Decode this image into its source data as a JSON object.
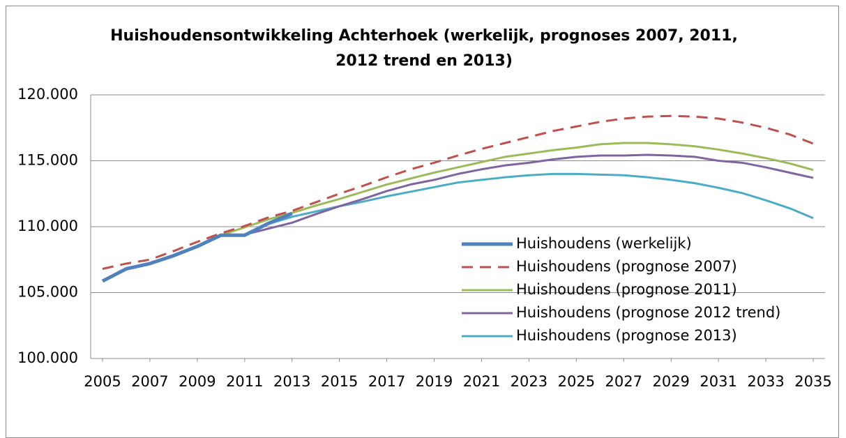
{
  "chart_data": {
    "type": "line",
    "title": "Huishoudensontwikkeling Achterhoek (werkelijk, prognoses 2007, 2011, 2012 trend en 2013)",
    "x": [
      2005,
      2006,
      2007,
      2008,
      2009,
      2010,
      2011,
      2012,
      2013,
      2014,
      2015,
      2016,
      2017,
      2018,
      2019,
      2020,
      2021,
      2022,
      2023,
      2024,
      2025,
      2026,
      2027,
      2028,
      2029,
      2030,
      2031,
      2032,
      2033,
      2034,
      2035
    ],
    "xlim": [
      2004.5,
      2035.5
    ],
    "xticks": [
      2005,
      2007,
      2009,
      2011,
      2013,
      2015,
      2017,
      2019,
      2021,
      2023,
      2025,
      2027,
      2029,
      2031,
      2033,
      2035
    ],
    "ylim": [
      100000,
      120000
    ],
    "yticks": [
      {
        "value": 100000,
        "label": "100.000"
      },
      {
        "value": 105000,
        "label": "105.000"
      },
      {
        "value": 110000,
        "label": "110.000"
      },
      {
        "value": 115000,
        "label": "115.000"
      },
      {
        "value": 120000,
        "label": "120.000"
      }
    ],
    "grid": true,
    "series": [
      {
        "name": "Huishoudens (werkelijk)",
        "color": "#4f81bd",
        "linewidth": 5,
        "dashed": false,
        "values": [
          105870,
          106800,
          107200,
          107800,
          108500,
          109350,
          109350,
          110250,
          111000,
          null,
          null,
          null,
          null,
          null,
          null,
          null,
          null,
          null,
          null,
          null,
          null,
          null,
          null,
          null,
          null,
          null,
          null,
          null,
          null,
          null,
          null
        ]
      },
      {
        "name": "Huishoudens (prognose 2007)",
        "color": "#c0504d",
        "linewidth": 3,
        "dashed": true,
        "values": [
          106800,
          107200,
          107500,
          108150,
          108850,
          109500,
          110050,
          110700,
          111200,
          111850,
          112500,
          113100,
          113750,
          114350,
          114850,
          115400,
          115900,
          116350,
          116800,
          117250,
          117600,
          117950,
          118200,
          118350,
          118400,
          118350,
          118200,
          117900,
          117500,
          117000,
          116300
        ]
      },
      {
        "name": "Huishoudens (prognose 2011)",
        "color": "#9bbb59",
        "linewidth": 3,
        "dashed": false,
        "values": [
          null,
          null,
          null,
          null,
          null,
          109350,
          109950,
          110550,
          111050,
          111600,
          112100,
          112650,
          113200,
          113650,
          114100,
          114500,
          114900,
          115300,
          115550,
          115800,
          116000,
          116250,
          116350,
          116350,
          116250,
          116100,
          115850,
          115550,
          115200,
          114800,
          114300
        ]
      },
      {
        "name": "Huishoudens (prognose 2012 trend)",
        "color": "#8064a2",
        "linewidth": 3,
        "dashed": false,
        "values": [
          null,
          null,
          null,
          null,
          null,
          null,
          109400,
          109850,
          110300,
          110950,
          111550,
          112100,
          112700,
          113200,
          113550,
          114000,
          114350,
          114650,
          114850,
          115100,
          115300,
          115400,
          115400,
          115450,
          115400,
          115300,
          115000,
          114850,
          114500,
          114100,
          113700
        ]
      },
      {
        "name": "Huishoudens (prognose 2013)",
        "color": "#4bacc6",
        "linewidth": 3,
        "dashed": false,
        "values": [
          null,
          null,
          null,
          null,
          null,
          null,
          null,
          110200,
          110750,
          111150,
          111550,
          111900,
          112300,
          112650,
          113000,
          113350,
          113550,
          113750,
          113900,
          114000,
          114000,
          113950,
          113900,
          113750,
          113550,
          113300,
          112950,
          112550,
          112000,
          111400,
          110650
        ]
      }
    ]
  }
}
